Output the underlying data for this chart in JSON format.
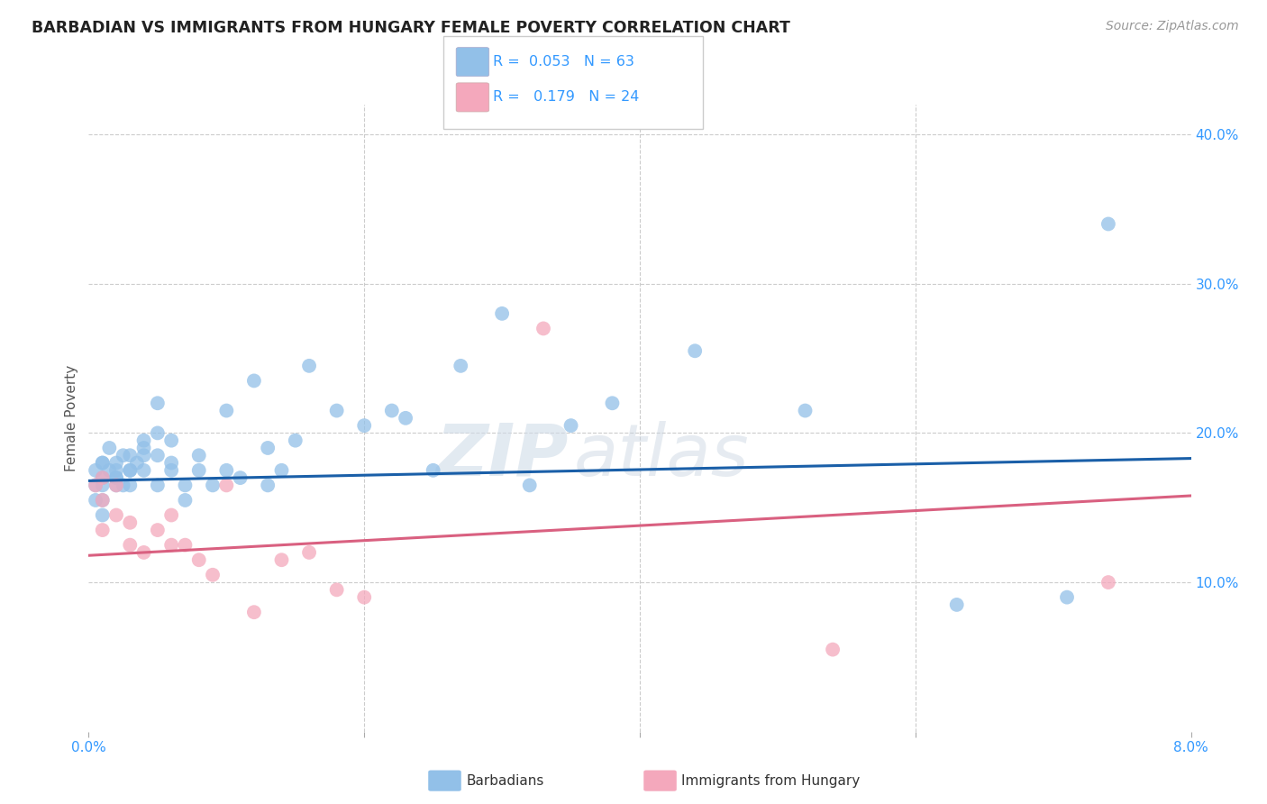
{
  "title": "BARBADIAN VS IMMIGRANTS FROM HUNGARY FEMALE POVERTY CORRELATION CHART",
  "source": "Source: ZipAtlas.com",
  "ylabel": "Female Poverty",
  "watermark_zip": "ZIP",
  "watermark_atlas": "atlas",
  "legend_blue_r": "0.053",
  "legend_blue_n": "63",
  "legend_pink_r": "0.179",
  "legend_pink_n": "24",
  "legend_blue_label": "Barbadians",
  "legend_pink_label": "Immigrants from Hungary",
  "xlim": [
    0.0,
    0.08
  ],
  "ylim": [
    0.0,
    0.42
  ],
  "yticks": [
    0.1,
    0.2,
    0.3,
    0.4
  ],
  "ytick_labels": [
    "10.0%",
    "20.0%",
    "30.0%",
    "40.0%"
  ],
  "xticks": [
    0.0,
    0.02,
    0.04,
    0.06,
    0.08
  ],
  "xtick_labels": [
    "0.0%",
    "",
    "",
    "",
    "8.0%"
  ],
  "background_color": "#ffffff",
  "grid_color": "#cccccc",
  "blue_color": "#92c0e8",
  "pink_color": "#f4a8bc",
  "line_blue_color": "#1a5fa8",
  "line_pink_color": "#d96080",
  "blue_x": [
    0.0005,
    0.0005,
    0.0005,
    0.001,
    0.001,
    0.001,
    0.001,
    0.001,
    0.001,
    0.0015,
    0.0015,
    0.002,
    0.002,
    0.002,
    0.002,
    0.002,
    0.0025,
    0.0025,
    0.003,
    0.003,
    0.003,
    0.003,
    0.0035,
    0.004,
    0.004,
    0.004,
    0.004,
    0.005,
    0.005,
    0.005,
    0.005,
    0.006,
    0.006,
    0.006,
    0.007,
    0.007,
    0.008,
    0.008,
    0.009,
    0.01,
    0.01,
    0.011,
    0.012,
    0.013,
    0.013,
    0.014,
    0.015,
    0.016,
    0.018,
    0.02,
    0.022,
    0.023,
    0.025,
    0.027,
    0.03,
    0.032,
    0.035,
    0.038,
    0.044,
    0.052,
    0.063,
    0.071,
    0.074
  ],
  "blue_y": [
    0.175,
    0.165,
    0.155,
    0.18,
    0.17,
    0.165,
    0.155,
    0.145,
    0.18,
    0.19,
    0.175,
    0.18,
    0.175,
    0.17,
    0.165,
    0.17,
    0.185,
    0.165,
    0.175,
    0.185,
    0.175,
    0.165,
    0.18,
    0.19,
    0.185,
    0.195,
    0.175,
    0.22,
    0.2,
    0.185,
    0.165,
    0.195,
    0.18,
    0.175,
    0.165,
    0.155,
    0.185,
    0.175,
    0.165,
    0.215,
    0.175,
    0.17,
    0.235,
    0.165,
    0.19,
    0.175,
    0.195,
    0.245,
    0.215,
    0.205,
    0.215,
    0.21,
    0.175,
    0.245,
    0.28,
    0.165,
    0.205,
    0.22,
    0.255,
    0.215,
    0.085,
    0.09,
    0.34
  ],
  "pink_x": [
    0.0005,
    0.001,
    0.001,
    0.001,
    0.002,
    0.002,
    0.003,
    0.003,
    0.004,
    0.005,
    0.006,
    0.006,
    0.007,
    0.008,
    0.009,
    0.01,
    0.012,
    0.014,
    0.016,
    0.018,
    0.02,
    0.033,
    0.054,
    0.074
  ],
  "pink_y": [
    0.165,
    0.17,
    0.155,
    0.135,
    0.165,
    0.145,
    0.14,
    0.125,
    0.12,
    0.135,
    0.145,
    0.125,
    0.125,
    0.115,
    0.105,
    0.165,
    0.08,
    0.115,
    0.12,
    0.095,
    0.09,
    0.27,
    0.055,
    0.1
  ],
  "blue_trend_x": [
    0.0,
    0.08
  ],
  "blue_trend_y": [
    0.168,
    0.183
  ],
  "pink_trend_x": [
    0.0,
    0.08
  ],
  "pink_trend_y": [
    0.118,
    0.158
  ]
}
